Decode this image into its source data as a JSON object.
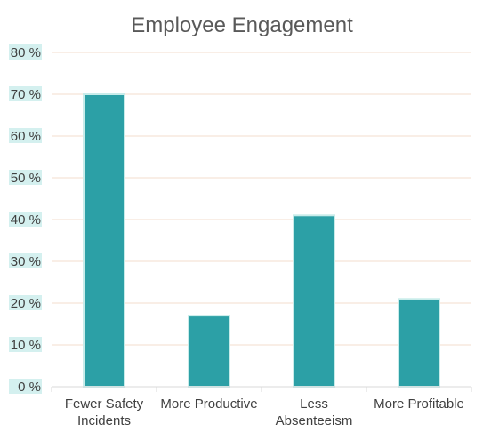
{
  "chart_data": {
    "type": "bar",
    "title": "Employee Engagement",
    "categories": [
      [
        "Fewer Safety",
        "Incidents"
      ],
      [
        "More Productive"
      ],
      [
        "Less",
        "Absenteeism"
      ],
      [
        "More Profitable"
      ]
    ],
    "values": [
      70,
      17,
      41,
      21
    ],
    "ylim": [
      0,
      80
    ],
    "yticks": [
      "0 %",
      "10 %",
      "20 %",
      "30 %",
      "40 %",
      "50 %",
      "60 %",
      "70 %",
      "80 %"
    ],
    "xlabel": "",
    "ylabel": "",
    "grid": true,
    "legend": "none",
    "colors": {
      "bar_fill": "#2ca0a6",
      "bar_stroke": "#c8ecea",
      "gridline": "#f3dccd",
      "tick_label_bg": "#d4f0ef",
      "axis": "#d9d9d9"
    }
  }
}
